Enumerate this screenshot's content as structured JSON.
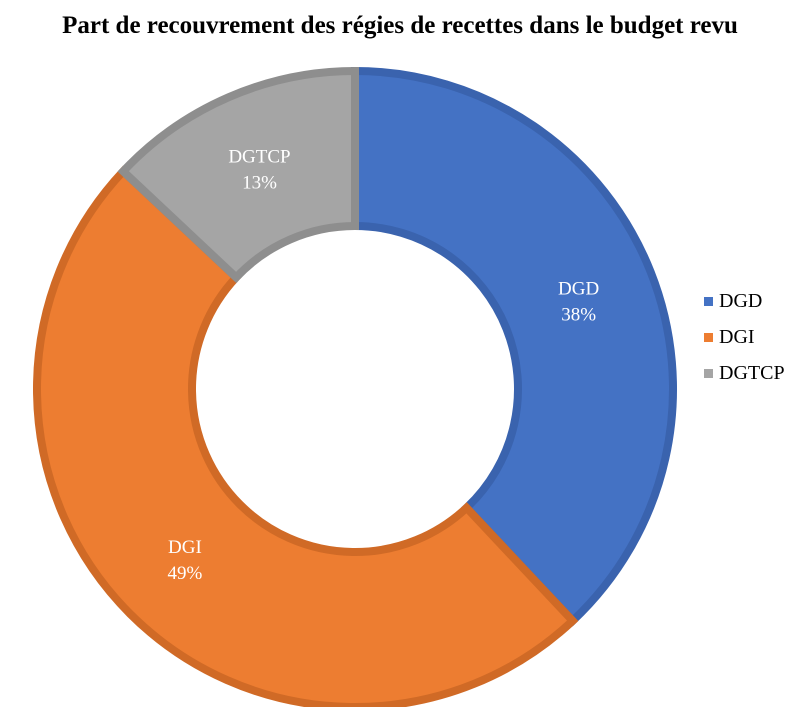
{
  "chart_data": {
    "type": "pie",
    "variant": "donut",
    "title": "Part de recouvrement des régies de recettes dans le budget revu",
    "categories": [
      "DGD",
      "DGI",
      "DGTCP"
    ],
    "values": [
      38,
      49,
      13
    ],
    "value_labels": [
      "38%",
      "49%",
      "13%"
    ],
    "colors": [
      "#4472C4",
      "#ED7D31",
      "#A5A5A5"
    ],
    "border_colors": [
      "#3A63AE",
      "#D06A26",
      "#8E8E8E"
    ],
    "start_angle_deg": 0,
    "direction": "clockwise",
    "legend": {
      "position": "right",
      "entries": [
        "DGD",
        "DGI",
        "DGTCP"
      ]
    }
  }
}
